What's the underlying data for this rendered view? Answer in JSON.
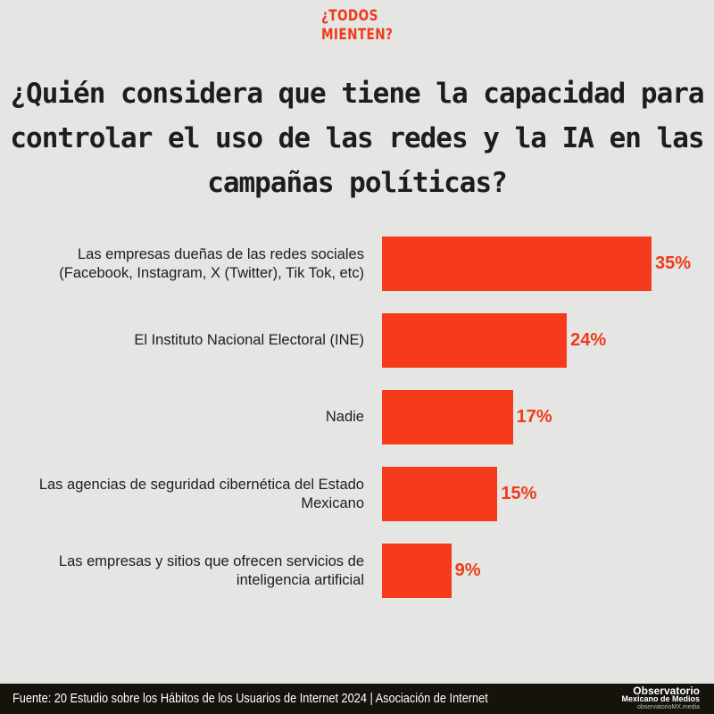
{
  "brand": {
    "line1": "¿TODOS",
    "line2": "MIENTEN?"
  },
  "chart_data": {
    "type": "bar",
    "orientation": "horizontal",
    "title": "¿Quién considera que tiene la capacidad para controlar el uso de las redes y la IA en las campañas políticas?",
    "categories": [
      "Las empresas dueñas de las redes sociales (Facebook, Instagram, X (Twitter), Tik Tok, etc)",
      "El Instituto Nacional Electoral (INE)",
      "Nadie",
      "Las agencias de seguridad cibernética del Estado Mexicano",
      "Las empresas y sitios que ofrecen servicios de inteligencia artificial"
    ],
    "values": [
      35,
      24,
      17,
      15,
      9
    ],
    "value_labels": [
      "35%",
      "24%",
      "17%",
      "15%",
      "9%"
    ],
    "xlim": [
      0,
      35
    ],
    "color": "#f53b1c"
  },
  "footer": {
    "source": "Fuente: 20 Estudio sobre los Hábitos de los Usuarios de Internet 2024  |  Asociación de Internet",
    "logo_line1": "Observatorio",
    "logo_line2": "Mexicano de Medios",
    "logo_line3": "observatorioMX.media"
  }
}
